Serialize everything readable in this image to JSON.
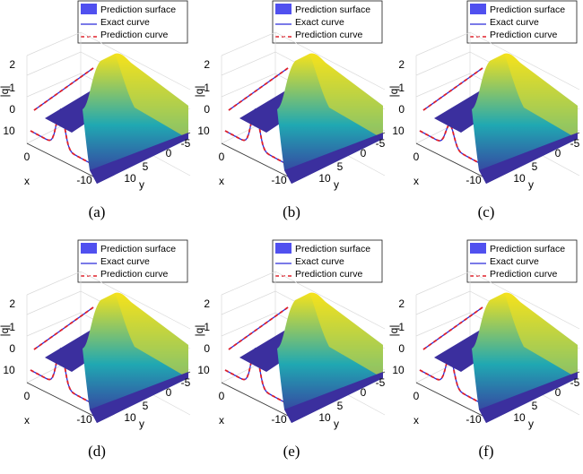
{
  "chart_data": [
    {
      "type": "surface",
      "panel_label": "(a)",
      "legend": [
        "Prediction surface",
        "Exact curve",
        "Prediction curve"
      ],
      "zlabel": "|q|",
      "xlabel": "x",
      "ylabel": "y",
      "z_ticks": [
        "2",
        "1",
        "0"
      ],
      "x_ticks": [
        "10",
        "0",
        "-10"
      ],
      "y_ticks": [
        "-5",
        "0",
        "5",
        "10"
      ],
      "zlim": [
        0,
        2
      ],
      "xlim": [
        -10,
        10
      ],
      "ylim": [
        -10,
        10
      ],
      "curve_peak": 1.0,
      "peak_shift": 0.0
    },
    {
      "type": "surface",
      "panel_label": "(b)",
      "legend": [
        "Prediction surface",
        "Exact curve",
        "Prediction curve"
      ],
      "zlabel": "|q|",
      "xlabel": "x",
      "ylabel": "y",
      "z_ticks": [
        "2",
        "1",
        "0"
      ],
      "x_ticks": [
        "10",
        "0",
        "-10"
      ],
      "y_ticks": [
        "-5",
        "0",
        "5",
        "10"
      ],
      "zlim": [
        0,
        2
      ],
      "xlim": [
        -10,
        10
      ],
      "ylim": [
        -10,
        10
      ],
      "curve_peak": 1.0,
      "peak_shift": 0.0
    },
    {
      "type": "surface",
      "panel_label": "(c)",
      "legend": [
        "Prediction surface",
        "Exact curve",
        "Prediction curve"
      ],
      "zlabel": "|q|",
      "xlabel": "x",
      "ylabel": "y",
      "z_ticks": [
        "2",
        "1",
        "0"
      ],
      "x_ticks": [
        "10",
        "0",
        "-10"
      ],
      "y_ticks": [
        "-5",
        "0",
        "5",
        "10"
      ],
      "zlim": [
        0,
        2
      ],
      "xlim": [
        -10,
        10
      ],
      "ylim": [
        -10,
        10
      ],
      "curve_peak": 0.6,
      "peak_shift": 0.0
    },
    {
      "type": "surface",
      "panel_label": "(d)",
      "legend": [
        "Prediction surface",
        "Exact curve",
        "Prediction curve"
      ],
      "zlabel": "|q|",
      "xlabel": "x",
      "ylabel": "y",
      "z_ticks": [
        "2",
        "1",
        "0"
      ],
      "x_ticks": [
        "10",
        "0",
        "-10"
      ],
      "y_ticks": [
        "-5",
        "0",
        "5",
        "10"
      ],
      "zlim": [
        0,
        2
      ],
      "xlim": [
        -10,
        10
      ],
      "ylim": [
        -10,
        10
      ],
      "curve_peak": 1.0,
      "peak_shift": 0.0
    },
    {
      "type": "surface",
      "panel_label": "(e)",
      "legend": [
        "Prediction surface",
        "Exact curve",
        "Prediction curve"
      ],
      "zlabel": "|q|",
      "xlabel": "x",
      "ylabel": "y",
      "z_ticks": [
        "2",
        "1",
        "0"
      ],
      "x_ticks": [
        "10",
        "0",
        "-10"
      ],
      "y_ticks": [
        "-5",
        "0",
        "5",
        "10"
      ],
      "zlim": [
        0,
        2
      ],
      "xlim": [
        -10,
        10
      ],
      "ylim": [
        -10,
        10
      ],
      "curve_peak": 1.0,
      "peak_shift": 0.0
    },
    {
      "type": "surface",
      "panel_label": "(f)",
      "legend": [
        "Prediction surface",
        "Exact curve",
        "Prediction curve"
      ],
      "zlabel": "|q|",
      "xlabel": "x",
      "ylabel": "y",
      "z_ticks": [
        "2",
        "1",
        "0"
      ],
      "x_ticks": [
        "10",
        "0",
        "-10"
      ],
      "y_ticks": [
        "-5",
        "0",
        "5",
        "10"
      ],
      "zlim": [
        0,
        2
      ],
      "xlim": [
        -10,
        10
      ],
      "ylim": [
        -10,
        10
      ],
      "curve_peak": 0.8,
      "peak_shift": 0.0
    }
  ],
  "colors": {
    "surface_low": "#3b2f9e",
    "surface_mid": "#20a8b2",
    "surface_high": "#f5e21c",
    "legend_surface": "#5050ef",
    "exact_curve": "#2b2bd9",
    "prediction_curve": "#e0202a"
  }
}
